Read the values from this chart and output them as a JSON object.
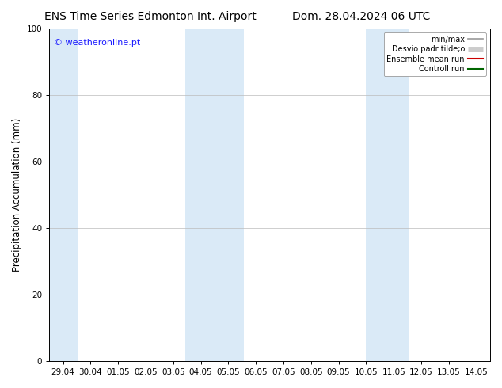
{
  "title_left": "ENS Time Series Edmonton Int. Airport",
  "title_right": "Dom. 28.04.2024 06 UTC",
  "ylabel": "Precipitation Accumulation (mm)",
  "watermark": "© weatheronline.pt",
  "watermark_color": "#1a1aff",
  "ylim": [
    0,
    100
  ],
  "yticks": [
    0,
    20,
    40,
    60,
    80,
    100
  ],
  "x_tick_labels": [
    "29.04",
    "30.04",
    "01.05",
    "02.05",
    "03.05",
    "04.05",
    "05.05",
    "06.05",
    "07.05",
    "08.05",
    "09.05",
    "10.05",
    "11.05",
    "12.05",
    "13.05",
    "14.05"
  ],
  "x_tick_positions": [
    0,
    1,
    2,
    3,
    4,
    5,
    6,
    7,
    8,
    9,
    10,
    11,
    12,
    13,
    14,
    15
  ],
  "xlim": [
    -0.5,
    15.5
  ],
  "shaded_bands": [
    {
      "x_start": -0.5,
      "x_end": 0.55,
      "color": "#daeaf7"
    },
    {
      "x_start": 4.45,
      "x_end": 6.55,
      "color": "#daeaf7"
    },
    {
      "x_start": 11.0,
      "x_end": 12.55,
      "color": "#daeaf7"
    }
  ],
  "legend_entries": [
    {
      "label": "min/max",
      "color": "#999999",
      "linewidth": 1.2,
      "linestyle": "-",
      "type": "line"
    },
    {
      "label": "Desvio padr tilde;o",
      "color": "#cccccc",
      "linewidth": 5,
      "linestyle": "-",
      "type": "thick_line"
    },
    {
      "label": "Ensemble mean run",
      "color": "#cc0000",
      "linewidth": 1.5,
      "linestyle": "-",
      "type": "line"
    },
    {
      "label": "Controll run",
      "color": "#006600",
      "linewidth": 1.5,
      "linestyle": "-",
      "type": "line"
    }
  ],
  "background_color": "#ffffff",
  "grid_color": "#bbbbbb",
  "title_fontsize": 10,
  "tick_fontsize": 7.5,
  "ylabel_fontsize": 8.5,
  "watermark_fontsize": 8,
  "legend_fontsize": 7
}
